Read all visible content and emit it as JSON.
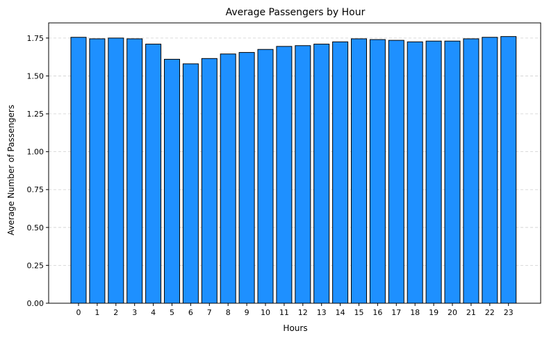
{
  "chart_data": {
    "type": "bar",
    "title": "Average Passengers by Hour",
    "xlabel": "Hours",
    "ylabel": "Average Number of Passengers",
    "categories": [
      "0",
      "1",
      "2",
      "3",
      "4",
      "5",
      "6",
      "7",
      "8",
      "9",
      "10",
      "11",
      "12",
      "13",
      "14",
      "15",
      "16",
      "17",
      "18",
      "19",
      "20",
      "21",
      "22",
      "23"
    ],
    "values": [
      1.755,
      1.745,
      1.75,
      1.745,
      1.71,
      1.61,
      1.58,
      1.615,
      1.645,
      1.655,
      1.675,
      1.695,
      1.7,
      1.71,
      1.725,
      1.745,
      1.74,
      1.735,
      1.725,
      1.73,
      1.73,
      1.745,
      1.755,
      1.76
    ],
    "ylim": [
      0,
      1.85
    ],
    "yticks": [
      "0.00",
      "0.25",
      "0.50",
      "0.75",
      "1.00",
      "1.25",
      "1.50",
      "1.75"
    ],
    "grid": "y-dashed",
    "bar_color": "#1e90ff",
    "edge_color": "#000000"
  }
}
